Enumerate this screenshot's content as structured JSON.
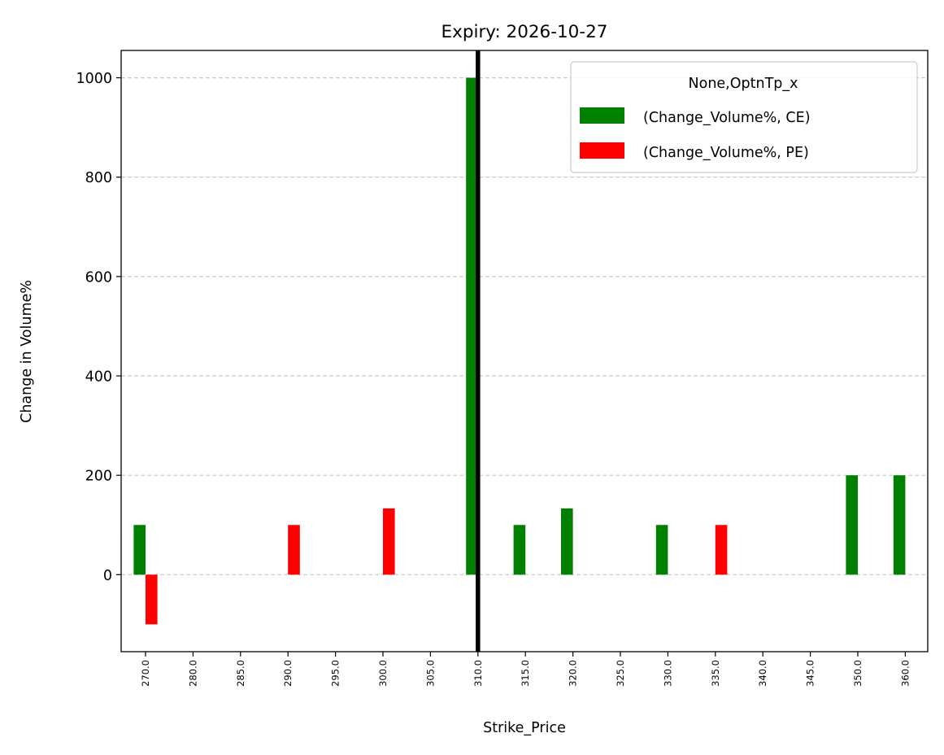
{
  "chart_data": {
    "type": "bar",
    "title": "Expiry: 2026-10-27",
    "xlabel": "Strike_Price",
    "ylabel": "Change in Volume%",
    "categories": [
      "270.0",
      "280.0",
      "285.0",
      "290.0",
      "295.0",
      "300.0",
      "305.0",
      "310.0",
      "315.0",
      "320.0",
      "325.0",
      "330.0",
      "335.0",
      "340.0",
      "345.0",
      "350.0",
      "360.0"
    ],
    "series": [
      {
        "name": "(Change_Volume%, CE)",
        "color": "#008000",
        "values": [
          100,
          0,
          0,
          0,
          0,
          0,
          0,
          1000,
          100,
          133.33,
          0,
          100,
          0,
          0,
          0,
          200,
          200
        ]
      },
      {
        "name": "(Change_Volume%, PE)",
        "color": "#ff0000",
        "values": [
          -100,
          0,
          0,
          100,
          0,
          133.33,
          0,
          0,
          0,
          0,
          0,
          0,
          100,
          0,
          0,
          0,
          0
        ]
      }
    ],
    "ylim": [
      -155,
      1055
    ],
    "yticks": [
      "0",
      "200",
      "400",
      "600",
      "800",
      "1000"
    ],
    "grid": "y-dashed",
    "legend": {
      "title": "None,OptnTp_x",
      "placement": "top-right"
    },
    "vline": {
      "category": "310.0",
      "color": "#000000"
    }
  }
}
